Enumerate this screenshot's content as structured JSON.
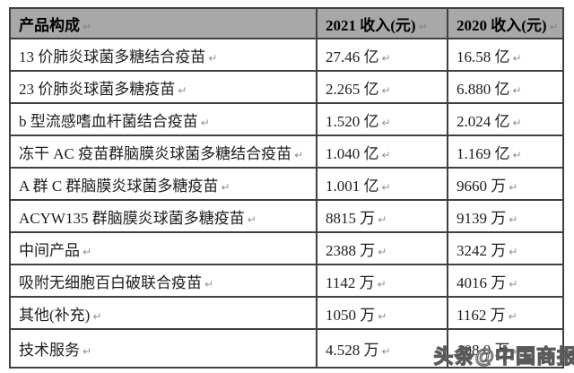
{
  "glyphs": {
    "return_mark": "↵"
  },
  "colors": {
    "header_bg": "#a8a8a8",
    "border": "#404040",
    "text": "#1d1d1d",
    "mark": "#8f8f8f",
    "watermark": "#5a5a5a"
  },
  "table": {
    "headers": {
      "product": "产品构成",
      "y2021": "2021 收入(元)",
      "y2020": "2020 收入(元)"
    },
    "rows": [
      {
        "product": "13 价肺炎球菌多糖结合疫苗",
        "y2021": "27.46 亿",
        "y2020": "16.58 亿"
      },
      {
        "product": "23 价肺炎球菌多糖疫苗",
        "y2021": "2.265 亿",
        "y2020": "6.880 亿"
      },
      {
        "product": "b 型流感嗜血杆菌结合疫苗",
        "y2021": "1.520 亿",
        "y2020": "2.024 亿"
      },
      {
        "product": "冻干 AC 疫苗群脑膜炎球菌多糖结合疫苗",
        "y2021": "1.040 亿",
        "y2020": "1.169 亿"
      },
      {
        "product": "A 群 C 群脑膜炎球菌多糖疫苗",
        "y2021": "1.001 亿",
        "y2020": "9660 万"
      },
      {
        "product": "ACYW135 群脑膜炎球菌多糖疫苗",
        "y2021": "8815 万",
        "y2020": "9139 万"
      },
      {
        "product": "中间产品",
        "y2021": "2388 万",
        "y2020": "3242 万"
      },
      {
        "product": "吸附无细胞百白破联合疫苗",
        "y2021": "1142 万",
        "y2020": "4016 万"
      },
      {
        "product": "其他(补充)",
        "y2021": "1050 万",
        "y2020": "1162 万"
      },
      {
        "product": "技术服务",
        "y2021": "4.528 万",
        "y2020": "108.0 万"
      }
    ]
  },
  "watermark": {
    "text": "头条@中国商报"
  }
}
